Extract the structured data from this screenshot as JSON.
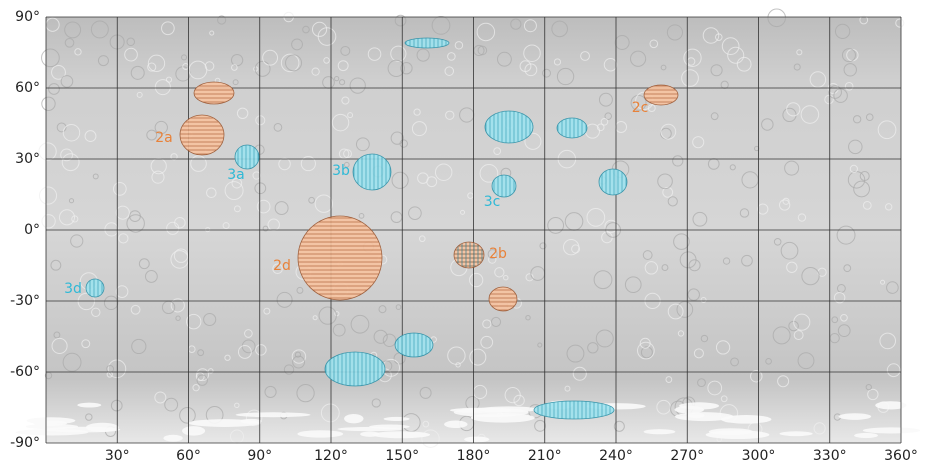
{
  "axes": {
    "x_ticks": [
      "30°",
      "60°",
      "90°",
      "120°",
      "150°",
      "180°",
      "210°",
      "240°",
      "270°",
      "300°",
      "330°",
      "360°"
    ],
    "y_ticks": [
      "90°",
      "60°",
      "30°",
      "0°",
      "-30°",
      "-60°",
      "-90°"
    ]
  },
  "regions": [
    "2a",
    "2b",
    "2c",
    "2d",
    "3a",
    "3b",
    "3c",
    "3d"
  ]
}
